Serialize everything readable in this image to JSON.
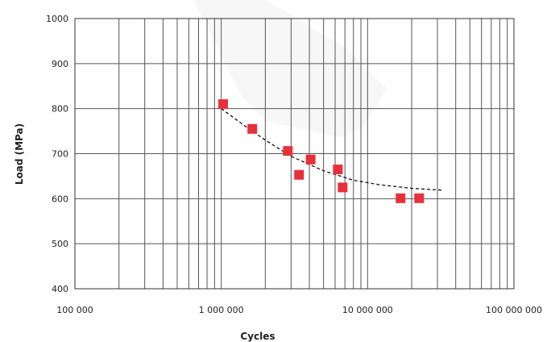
{
  "chart_data": {
    "type": "scatter",
    "title": "",
    "xlabel": "Cycles",
    "ylabel": "Load (MPa)",
    "x_scale": "log",
    "xlim": [
      100000,
      100000000
    ],
    "ylim": [
      400,
      1000
    ],
    "x_tick_values": [
      100000,
      1000000,
      10000000,
      100000000
    ],
    "x_tick_labels": [
      "100 000",
      "1 000 000",
      "10 000 000",
      "100 000 000"
    ],
    "y_tick_values": [
      400,
      500,
      600,
      700,
      800,
      900,
      1000
    ],
    "y_tick_labels": [
      "400",
      "500",
      "600",
      "700",
      "800",
      "900",
      "1000"
    ],
    "grid": true,
    "marker_color": "#e8303a",
    "points": [
      {
        "x": 1030000,
        "y": 810
      },
      {
        "x": 1630000,
        "y": 755
      },
      {
        "x": 2850000,
        "y": 706
      },
      {
        "x": 3400000,
        "y": 653
      },
      {
        "x": 4080000,
        "y": 687
      },
      {
        "x": 6260000,
        "y": 665
      },
      {
        "x": 6750000,
        "y": 625
      },
      {
        "x": 16800000,
        "y": 601
      },
      {
        "x": 22500000,
        "y": 601
      }
    ],
    "trendline": {
      "style": "dashed",
      "color": "#111111",
      "points": [
        {
          "x": 1000000,
          "y": 800
        },
        {
          "x": 1500000,
          "y": 758
        },
        {
          "x": 2000000,
          "y": 730
        },
        {
          "x": 3000000,
          "y": 694
        },
        {
          "x": 5000000,
          "y": 662
        },
        {
          "x": 8000000,
          "y": 641
        },
        {
          "x": 12000000,
          "y": 631
        },
        {
          "x": 20000000,
          "y": 623
        },
        {
          "x": 32000000,
          "y": 619
        }
      ]
    }
  }
}
